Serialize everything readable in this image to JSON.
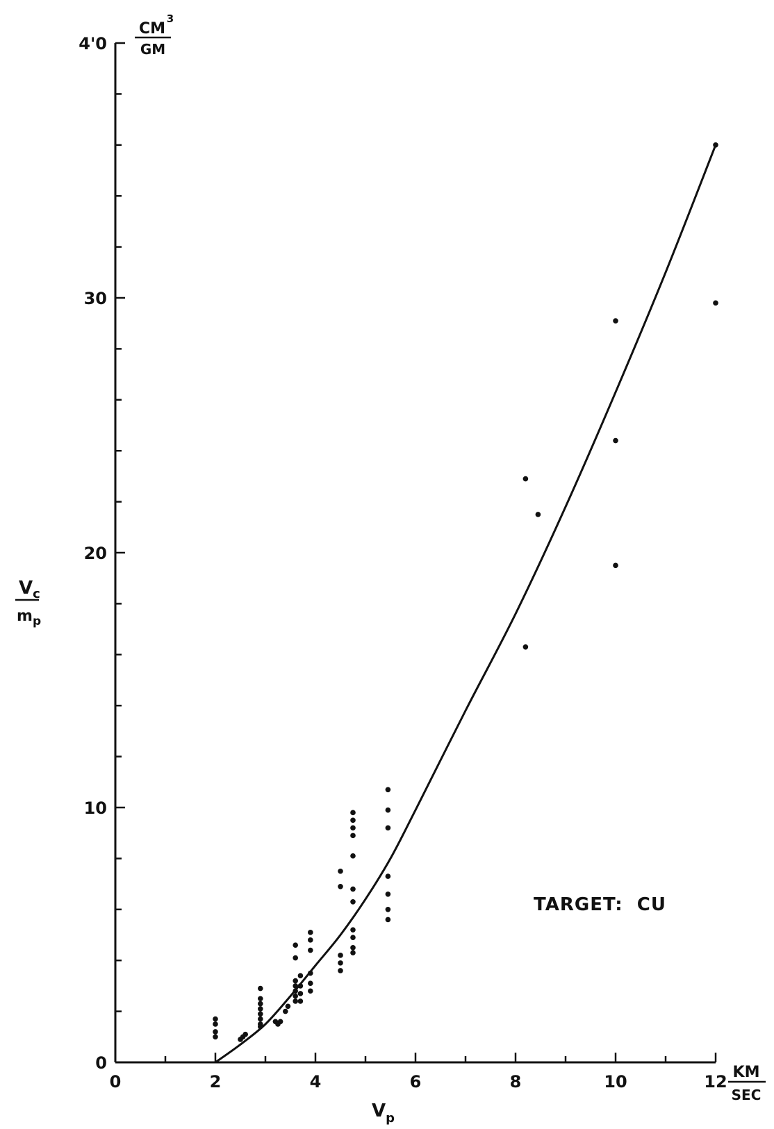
{
  "chart_data": {
    "type": "scatter",
    "title": "",
    "x_axis": {
      "range": [
        0,
        12
      ],
      "ticks": [
        0,
        2,
        4,
        6,
        8,
        10,
        12
      ],
      "tick_labels": [
        "0",
        "2",
        "4",
        "6",
        "8",
        "10",
        "12"
      ],
      "label_main": "V",
      "label_sub": "p",
      "unit_num": "KM",
      "unit_den": "SEC"
    },
    "y_axis": {
      "range": [
        0,
        40
      ],
      "ticks": [
        0,
        10,
        20,
        30,
        40
      ],
      "tick_labels": [
        "0",
        "10",
        "20",
        "30",
        "4'0"
      ],
      "label_num_main": "V",
      "label_num_sub": "c",
      "label_den_main": "m",
      "label_den_sub": "p",
      "unit_num": "CM",
      "unit_sup": "3",
      "unit_den": "GM"
    },
    "annotation": "TARGET:  CU",
    "grid": false,
    "series": [
      {
        "type": "scatter",
        "points": [
          [
            2.0,
            1.7
          ],
          [
            2.0,
            1.5
          ],
          [
            2.0,
            1.2
          ],
          [
            2.0,
            1.0
          ],
          [
            2.5,
            0.9
          ],
          [
            2.55,
            1.0
          ],
          [
            2.6,
            1.1
          ],
          [
            2.9,
            2.9
          ],
          [
            2.9,
            2.5
          ],
          [
            2.9,
            2.3
          ],
          [
            2.9,
            2.1
          ],
          [
            2.9,
            1.9
          ],
          [
            2.9,
            1.7
          ],
          [
            2.9,
            1.5
          ],
          [
            2.9,
            1.4
          ],
          [
            3.2,
            1.6
          ],
          [
            3.25,
            1.5
          ],
          [
            3.3,
            1.6
          ],
          [
            3.4,
            2.0
          ],
          [
            3.45,
            2.2
          ],
          [
            3.6,
            4.6
          ],
          [
            3.6,
            4.1
          ],
          [
            3.6,
            3.2
          ],
          [
            3.6,
            3.0
          ],
          [
            3.6,
            2.8
          ],
          [
            3.6,
            2.6
          ],
          [
            3.6,
            2.4
          ],
          [
            3.7,
            3.4
          ],
          [
            3.7,
            3.0
          ],
          [
            3.7,
            2.7
          ],
          [
            3.7,
            2.4
          ],
          [
            3.9,
            5.1
          ],
          [
            3.9,
            4.8
          ],
          [
            3.9,
            4.4
          ],
          [
            3.9,
            3.5
          ],
          [
            3.9,
            3.1
          ],
          [
            3.9,
            2.8
          ],
          [
            4.5,
            7.5
          ],
          [
            4.5,
            6.9
          ],
          [
            4.5,
            4.2
          ],
          [
            4.5,
            3.9
          ],
          [
            4.5,
            3.6
          ],
          [
            4.75,
            9.8
          ],
          [
            4.75,
            9.5
          ],
          [
            4.75,
            9.2
          ],
          [
            4.75,
            8.9
          ],
          [
            4.75,
            8.1
          ],
          [
            4.75,
            6.8
          ],
          [
            4.75,
            6.3
          ],
          [
            4.75,
            5.2
          ],
          [
            4.75,
            4.9
          ],
          [
            4.75,
            4.5
          ],
          [
            4.75,
            4.3
          ],
          [
            5.45,
            10.7
          ],
          [
            5.45,
            9.9
          ],
          [
            5.45,
            9.2
          ],
          [
            5.45,
            7.3
          ],
          [
            5.45,
            6.6
          ],
          [
            5.45,
            6.0
          ],
          [
            5.45,
            5.6
          ],
          [
            8.2,
            22.9
          ],
          [
            8.2,
            16.3
          ],
          [
            8.45,
            21.5
          ],
          [
            10.0,
            29.1
          ],
          [
            10.0,
            24.4
          ],
          [
            10.0,
            19.5
          ],
          [
            12.0,
            36.0
          ],
          [
            12.0,
            29.8
          ]
        ]
      },
      {
        "type": "line",
        "points": [
          [
            2.0,
            0.0
          ],
          [
            2.5,
            0.7
          ],
          [
            3.0,
            1.5
          ],
          [
            3.5,
            2.6
          ],
          [
            4.0,
            3.8
          ],
          [
            4.5,
            5.0
          ],
          [
            5.0,
            6.4
          ],
          [
            5.5,
            8.0
          ],
          [
            6.0,
            9.9
          ],
          [
            7.0,
            13.8
          ],
          [
            8.0,
            17.6
          ],
          [
            9.0,
            21.8
          ],
          [
            10.0,
            26.3
          ],
          [
            11.0,
            31.0
          ],
          [
            12.0,
            36.0
          ]
        ]
      }
    ]
  }
}
